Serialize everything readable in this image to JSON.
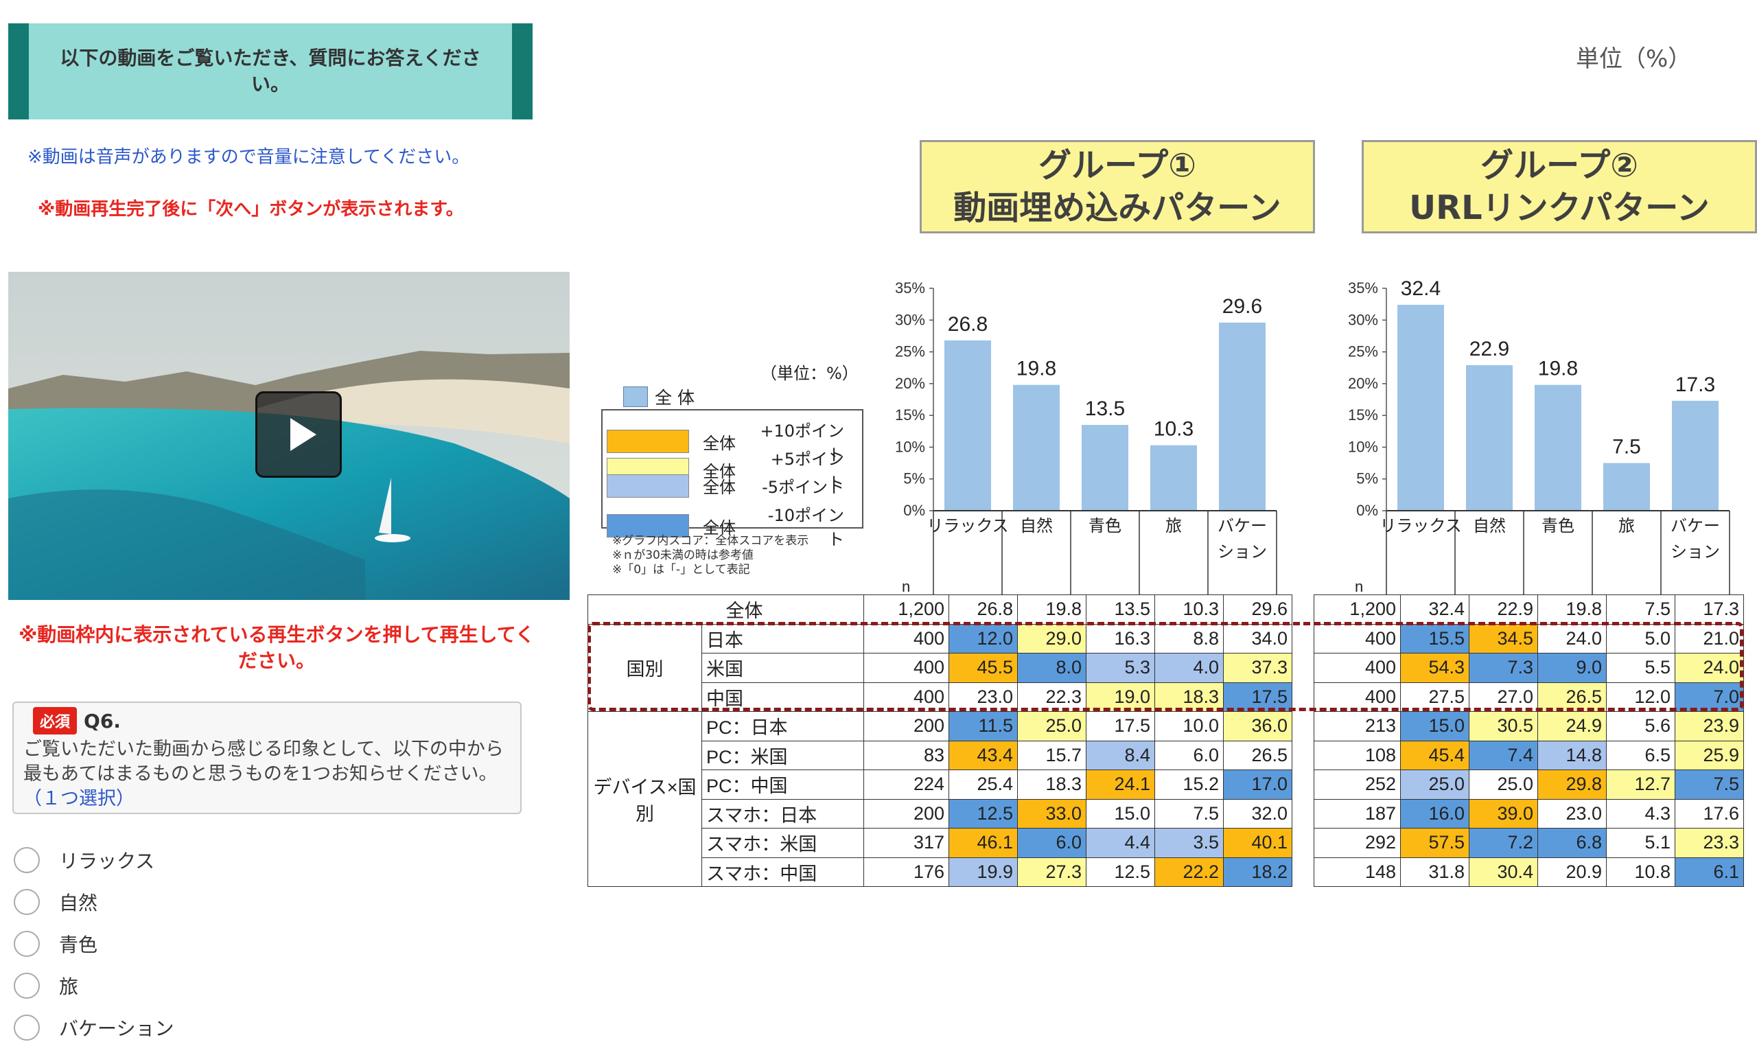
{
  "survey": {
    "banner": "以下の動画をご覧いただき、質問にお答えください。",
    "volume_note": "※動画は音声がありますので音量に注意してください。",
    "next_note": "※動画再生完了後に「次へ」ボタンが表示されます。",
    "play_note": "※動画枠内に表示されている再生ボタンを押して再生してください。",
    "required_badge": "必須",
    "question_no": "Q6.",
    "question_text": "ご覧いただいた動画から感じる印象として、以下の中から最もあてはまるものと思うものを1つお知らせください。",
    "question_hint": "（１つ選択）",
    "options": [
      "リラックス",
      "自然",
      "青色",
      "旅",
      "バケーション"
    ]
  },
  "unit_label": "単位（%）",
  "groups": [
    {
      "line1": "グループ①",
      "line2": "動画埋め込みパターン"
    },
    {
      "line1": "グループ②",
      "line2": "URLリンクパターン"
    }
  ],
  "legend": {
    "unit": "（単位：%）",
    "overall": "全 体",
    "rows": [
      {
        "label": "全体",
        "desc": "+10ポイント",
        "color": "#fdb913"
      },
      {
        "label": "全体",
        "desc": "+5ポイント",
        "color": "#fdfa9b"
      },
      {
        "label": "全体",
        "desc": "-5ポイント",
        "color": "#a8c4ec"
      },
      {
        "label": "全体",
        "desc": "-10ポイント",
        "color": "#5b9bdc"
      }
    ],
    "notes": [
      "※グラフ内スコア：全体スコアを表示",
      "※ｎが30未満の時は参考値",
      "※「0」は「-」として表記"
    ]
  },
  "table": {
    "n_header": "n",
    "row_groups": [
      {
        "group": "",
        "rows": [
          {
            "label": "全体"
          }
        ]
      },
      {
        "group": "国別",
        "rows": [
          {
            "label": "日本"
          },
          {
            "label": "米国"
          },
          {
            "label": "中国"
          }
        ]
      },
      {
        "group": "デバイス×国別",
        "rows": [
          {
            "label": "PC：日本"
          },
          {
            "label": "PC：米国"
          },
          {
            "label": "PC：中国"
          },
          {
            "label": "スマホ：日本"
          },
          {
            "label": "スマホ：米国"
          },
          {
            "label": "スマホ：中国"
          }
        ]
      }
    ]
  },
  "chart_data": [
    {
      "type": "bar",
      "title": "グループ① 動画埋め込みパターン",
      "categories": [
        "リラックス",
        "自然",
        "青色",
        "旅",
        "バケー\nション"
      ],
      "values": [
        26.8,
        19.8,
        13.5,
        10.3,
        29.6
      ],
      "ylim": [
        0,
        35
      ],
      "yticks": [
        "0%",
        "5%",
        "10%",
        "15%",
        "20%",
        "25%",
        "30%",
        "35%"
      ],
      "bar_color": "#9dc3e6",
      "table_rows": [
        {
          "n": "1,200",
          "cells": [
            [
              "26.8",
              ""
            ],
            [
              "19.8",
              ""
            ],
            [
              "13.5",
              ""
            ],
            [
              "10.3",
              ""
            ],
            [
              "29.6",
              ""
            ]
          ]
        },
        {
          "n": "400",
          "cells": [
            [
              "12.0",
              "b"
            ],
            [
              "29.0",
              "y"
            ],
            [
              "16.3",
              ""
            ],
            [
              "8.8",
              ""
            ],
            [
              "34.0",
              ""
            ]
          ]
        },
        {
          "n": "400",
          "cells": [
            [
              "45.5",
              "o"
            ],
            [
              "8.0",
              "b"
            ],
            [
              "5.3",
              "lb"
            ],
            [
              "4.0",
              "lb"
            ],
            [
              "37.3",
              "y"
            ]
          ]
        },
        {
          "n": "400",
          "cells": [
            [
              "23.0",
              ""
            ],
            [
              "22.3",
              ""
            ],
            [
              "19.0",
              "y"
            ],
            [
              "18.3",
              "y"
            ],
            [
              "17.5",
              "b"
            ]
          ]
        },
        {
          "n": "200",
          "cells": [
            [
              "11.5",
              "b"
            ],
            [
              "25.0",
              "y"
            ],
            [
              "17.5",
              ""
            ],
            [
              "10.0",
              ""
            ],
            [
              "36.0",
              "y"
            ]
          ]
        },
        {
          "n": "83",
          "cells": [
            [
              "43.4",
              "o"
            ],
            [
              "15.7",
              ""
            ],
            [
              "8.4",
              "lb"
            ],
            [
              "6.0",
              ""
            ],
            [
              "26.5",
              ""
            ]
          ]
        },
        {
          "n": "224",
          "cells": [
            [
              "25.4",
              ""
            ],
            [
              "18.3",
              ""
            ],
            [
              "24.1",
              "o"
            ],
            [
              "15.2",
              ""
            ],
            [
              "17.0",
              "b"
            ]
          ]
        },
        {
          "n": "200",
          "cells": [
            [
              "12.5",
              "b"
            ],
            [
              "33.0",
              "o"
            ],
            [
              "15.0",
              ""
            ],
            [
              "7.5",
              ""
            ],
            [
              "32.0",
              ""
            ]
          ]
        },
        {
          "n": "317",
          "cells": [
            [
              "46.1",
              "o"
            ],
            [
              "6.0",
              "b"
            ],
            [
              "4.4",
              "lb"
            ],
            [
              "3.5",
              "lb"
            ],
            [
              "40.1",
              "o"
            ]
          ]
        },
        {
          "n": "176",
          "cells": [
            [
              "19.9",
              "lb"
            ],
            [
              "27.3",
              "y"
            ],
            [
              "12.5",
              ""
            ],
            [
              "22.2",
              "o"
            ],
            [
              "18.2",
              "b"
            ]
          ]
        }
      ]
    },
    {
      "type": "bar",
      "title": "グループ② URLリンクパターン",
      "categories": [
        "リラックス",
        "自然",
        "青色",
        "旅",
        "バケー\nション"
      ],
      "values": [
        32.4,
        22.9,
        19.8,
        7.5,
        17.3
      ],
      "ylim": [
        0,
        35
      ],
      "yticks": [
        "0%",
        "5%",
        "10%",
        "15%",
        "20%",
        "25%",
        "30%",
        "35%"
      ],
      "bar_color": "#9dc3e6",
      "table_rows": [
        {
          "n": "1,200",
          "cells": [
            [
              "32.4",
              ""
            ],
            [
              "22.9",
              ""
            ],
            [
              "19.8",
              ""
            ],
            [
              "7.5",
              ""
            ],
            [
              "17.3",
              ""
            ]
          ]
        },
        {
          "n": "400",
          "cells": [
            [
              "15.5",
              "b"
            ],
            [
              "34.5",
              "o"
            ],
            [
              "24.0",
              ""
            ],
            [
              "5.0",
              ""
            ],
            [
              "21.0",
              ""
            ]
          ]
        },
        {
          "n": "400",
          "cells": [
            [
              "54.3",
              "o"
            ],
            [
              "7.3",
              "b"
            ],
            [
              "9.0",
              "b"
            ],
            [
              "5.5",
              ""
            ],
            [
              "24.0",
              "y"
            ]
          ]
        },
        {
          "n": "400",
          "cells": [
            [
              "27.5",
              ""
            ],
            [
              "27.0",
              ""
            ],
            [
              "26.5",
              "y"
            ],
            [
              "12.0",
              ""
            ],
            [
              "7.0",
              "b"
            ]
          ]
        },
        {
          "n": "213",
          "cells": [
            [
              "15.0",
              "b"
            ],
            [
              "30.5",
              "y"
            ],
            [
              "24.9",
              "y"
            ],
            [
              "5.6",
              ""
            ],
            [
              "23.9",
              "y"
            ]
          ]
        },
        {
          "n": "108",
          "cells": [
            [
              "45.4",
              "o"
            ],
            [
              "7.4",
              "b"
            ],
            [
              "14.8",
              "lb"
            ],
            [
              "6.5",
              ""
            ],
            [
              "25.9",
              "y"
            ]
          ]
        },
        {
          "n": "252",
          "cells": [
            [
              "25.0",
              "lb"
            ],
            [
              "25.0",
              ""
            ],
            [
              "29.8",
              "o"
            ],
            [
              "12.7",
              "y"
            ],
            [
              "7.5",
              "b"
            ]
          ]
        },
        {
          "n": "187",
          "cells": [
            [
              "16.0",
              "b"
            ],
            [
              "39.0",
              "o"
            ],
            [
              "23.0",
              ""
            ],
            [
              "4.3",
              ""
            ],
            [
              "17.6",
              ""
            ]
          ]
        },
        {
          "n": "292",
          "cells": [
            [
              "57.5",
              "o"
            ],
            [
              "7.2",
              "b"
            ],
            [
              "6.8",
              "b"
            ],
            [
              "5.1",
              ""
            ],
            [
              "23.3",
              "y"
            ]
          ]
        },
        {
          "n": "148",
          "cells": [
            [
              "31.8",
              ""
            ],
            [
              "30.4",
              "y"
            ],
            [
              "20.9",
              ""
            ],
            [
              "10.8",
              ""
            ],
            [
              "6.1",
              "b"
            ]
          ]
        }
      ]
    }
  ]
}
